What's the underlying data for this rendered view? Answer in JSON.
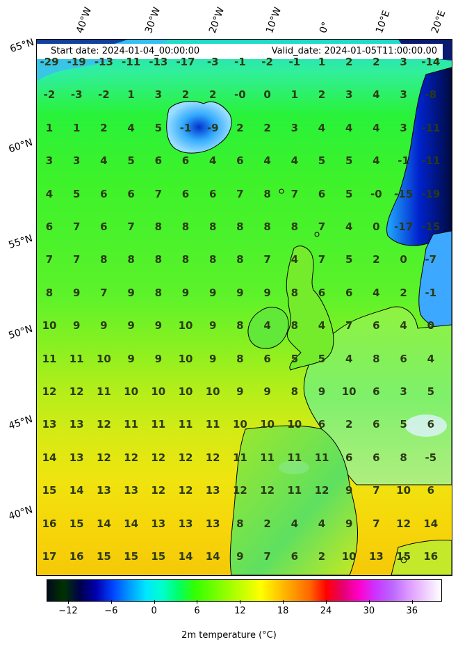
{
  "header": {
    "start_date": "Start date: 2024-01-04_00:00:00",
    "valid_date": "Valid_date: 2024-01-05T11:00:00.00"
  },
  "lon_labels": [
    "40°W",
    "30°W",
    "20°W",
    "10°W",
    "0°",
    "10°E",
    "20°E"
  ],
  "lat_labels": [
    "65°N",
    "60°N",
    "55°N",
    "50°N",
    "45°N",
    "40°N"
  ],
  "grid_values": [
    [
      "-29",
      "-19",
      "-13",
      "-11",
      "-13",
      "-17",
      "-3",
      "-1",
      "-2",
      "-1",
      "1",
      "2",
      "2",
      "3",
      "-14"
    ],
    [
      "-2",
      "-3",
      "-2",
      "1",
      "3",
      "2",
      "2",
      "-0",
      "0",
      "1",
      "2",
      "3",
      "4",
      "3",
      "-8"
    ],
    [
      "1",
      "1",
      "2",
      "4",
      "5",
      "-1",
      "-9",
      "2",
      "2",
      "3",
      "4",
      "4",
      "4",
      "3",
      "-11"
    ],
    [
      "3",
      "3",
      "4",
      "5",
      "6",
      "6",
      "4",
      "6",
      "4",
      "4",
      "5",
      "5",
      "4",
      "-1",
      "-11"
    ],
    [
      "4",
      "5",
      "6",
      "6",
      "7",
      "6",
      "6",
      "7",
      "8",
      "7",
      "6",
      "5",
      "-0",
      "-15",
      "-19"
    ],
    [
      "6",
      "7",
      "6",
      "7",
      "8",
      "8",
      "8",
      "8",
      "8",
      "8",
      "7",
      "4",
      "0",
      "-17",
      "-15"
    ],
    [
      "7",
      "7",
      "8",
      "8",
      "8",
      "8",
      "8",
      "8",
      "7",
      "4",
      "7",
      "5",
      "2",
      "0",
      "-7"
    ],
    [
      "8",
      "9",
      "7",
      "9",
      "8",
      "9",
      "9",
      "9",
      "9",
      "8",
      "6",
      "6",
      "4",
      "2",
      "-1"
    ],
    [
      "10",
      "9",
      "9",
      "9",
      "9",
      "10",
      "9",
      "8",
      "4",
      "8",
      "4",
      "7",
      "6",
      "4",
      "0"
    ],
    [
      "11",
      "11",
      "10",
      "9",
      "9",
      "10",
      "9",
      "8",
      "6",
      "5",
      "5",
      "4",
      "8",
      "6",
      "4"
    ],
    [
      "12",
      "12",
      "11",
      "10",
      "10",
      "10",
      "10",
      "9",
      "9",
      "8",
      "9",
      "10",
      "6",
      "3",
      "5"
    ],
    [
      "13",
      "13",
      "12",
      "11",
      "11",
      "11",
      "11",
      "10",
      "10",
      "10",
      "6",
      "2",
      "6",
      "5",
      "6"
    ],
    [
      "14",
      "13",
      "12",
      "12",
      "12",
      "12",
      "12",
      "11",
      "11",
      "11",
      "11",
      "6",
      "6",
      "8",
      "-5"
    ],
    [
      "15",
      "14",
      "13",
      "13",
      "12",
      "12",
      "13",
      "12",
      "12",
      "11",
      "12",
      "9",
      "7",
      "10",
      "6"
    ],
    [
      "16",
      "15",
      "14",
      "14",
      "13",
      "13",
      "13",
      "8",
      "2",
      "4",
      "4",
      "9",
      "7",
      "12",
      "14"
    ],
    [
      "17",
      "16",
      "15",
      "15",
      "15",
      "14",
      "14",
      "9",
      "7",
      "6",
      "2",
      "10",
      "13",
      "15",
      "16"
    ]
  ],
  "colorbar": {
    "ticks": [
      "−12",
      "−6",
      "0",
      "6",
      "12",
      "18",
      "24",
      "30",
      "36"
    ],
    "title": "2m temperature ($^\\circ$C)",
    "title_display": "2m temperature (°C)",
    "range": [
      -15,
      40
    ],
    "colors": [
      "#000a1a",
      "#003300",
      "#00004a",
      "#0000b0",
      "#0044ff",
      "#0099ff",
      "#00e6ff",
      "#00ffcc",
      "#00ff66",
      "#33ff00",
      "#66ff00",
      "#99ff00",
      "#ccff00",
      "#ffff00",
      "#ffcc00",
      "#ff9900",
      "#ff6600",
      "#ff0000",
      "#e6006e",
      "#ff00cc",
      "#cc33ff",
      "#bb66ff",
      "#dd99ff",
      "#eeccff",
      "#ffffff"
    ]
  }
}
